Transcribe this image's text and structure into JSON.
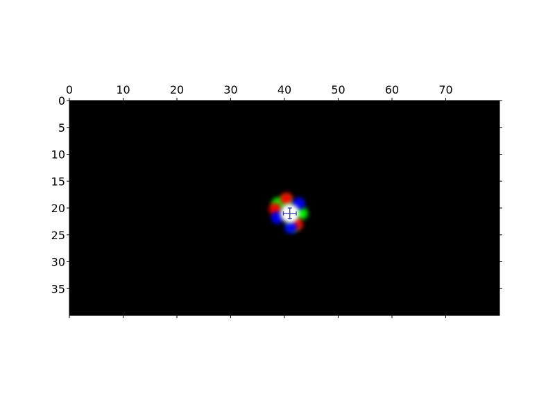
{
  "chart_data": {
    "type": "heatmap",
    "title": "",
    "xlabel": "",
    "ylabel": "",
    "x_axis_position": "top",
    "xlim": [
      0,
      80
    ],
    "ylim": [
      40,
      0
    ],
    "x_ticks": [
      0,
      10,
      20,
      30,
      40,
      50,
      60,
      70
    ],
    "y_ticks": [
      0,
      5,
      10,
      15,
      20,
      25,
      30,
      35
    ],
    "x_tick_labels": [
      "0",
      "10",
      "20",
      "30",
      "40",
      "50",
      "60",
      "70"
    ],
    "y_tick_labels": [
      "0",
      "5",
      "10",
      "15",
      "20",
      "25",
      "30",
      "35"
    ],
    "grid": false,
    "background_color": "#000000",
    "image_blob": {
      "center": [
        41,
        21
      ],
      "core_color": "#ffffff",
      "lobes": [
        {
          "color": "#00ff00",
          "x": 43.2,
          "y": 21
        },
        {
          "color": "#00ff00",
          "x": 38.8,
          "y": 19.2
        },
        {
          "color": "#00ff00",
          "x": 41.7,
          "y": 23.2
        },
        {
          "color": "#00ff00",
          "x": 40.3,
          "y": 18.8
        },
        {
          "color": "#ff0000",
          "x": 38.3,
          "y": 20.2
        },
        {
          "color": "#ff0000",
          "x": 42.3,
          "y": 23.0
        },
        {
          "color": "#ff0000",
          "x": 40.4,
          "y": 18.3
        },
        {
          "color": "#0000ff",
          "x": 38.7,
          "y": 21.8
        },
        {
          "color": "#0000ff",
          "x": 41.2,
          "y": 23.6
        },
        {
          "color": "#0000ff",
          "x": 42.7,
          "y": 19.2
        }
      ]
    },
    "marker": {
      "x": 41,
      "y": 21,
      "x_err": 1.2,
      "y_err": 1.0,
      "color": "#3333aa"
    }
  }
}
